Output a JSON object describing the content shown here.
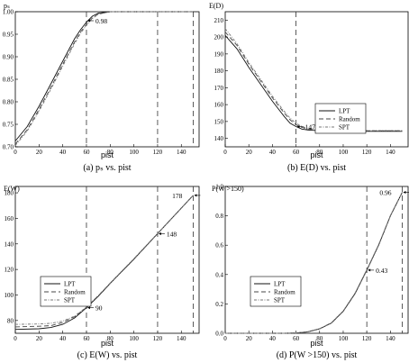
{
  "chart_data": [
    {
      "type": "line",
      "ylabel": "pₛ",
      "xlabel": "pist",
      "caption": "(a) pₛ vs. pist",
      "xlim": [
        0,
        155
      ],
      "ylim": [
        0.7,
        1.0
      ],
      "xticks": [
        "0",
        "20",
        "40",
        "60",
        "80",
        "100",
        "120",
        "140"
      ],
      "yticks": [
        "0.70",
        "0.75",
        "0.80",
        "0.85",
        "0.90",
        "0.95",
        "1.00"
      ],
      "vlines": [
        60,
        120,
        150
      ],
      "annotations": [
        {
          "text": "0.98",
          "x": 60,
          "y": 0.98
        }
      ],
      "legend": null,
      "x": [
        0,
        10,
        20,
        30,
        40,
        50,
        55,
        60,
        65,
        70,
        80,
        100,
        120,
        150
      ],
      "series": [
        {
          "name": "LPT",
          "style": "solid",
          "values": [
            0.713,
            0.745,
            0.79,
            0.84,
            0.89,
            0.94,
            0.96,
            0.977,
            0.99,
            0.997,
            1.0,
            1.0,
            1.0,
            1.0
          ]
        },
        {
          "name": "Random",
          "style": "dashed",
          "values": [
            0.706,
            0.738,
            0.783,
            0.832,
            0.883,
            0.933,
            0.955,
            0.972,
            0.986,
            0.995,
            1.0,
            1.0,
            1.0,
            1.0
          ]
        },
        {
          "name": "SPT",
          "style": "dotdash",
          "values": [
            0.703,
            0.735,
            0.779,
            0.828,
            0.879,
            0.929,
            0.952,
            0.97,
            0.985,
            0.994,
            1.0,
            1.0,
            1.0,
            1.0
          ]
        }
      ]
    },
    {
      "type": "line",
      "ylabel": "E(D)",
      "xlabel": "pist",
      "caption": "(b) E(D) vs. pist",
      "xlim": [
        0,
        155
      ],
      "ylim": [
        135,
        215
      ],
      "xticks": [
        "0",
        "20",
        "40",
        "60",
        "80",
        "100",
        "120",
        "140"
      ],
      "yticks": [
        "140",
        "150",
        "160",
        "170",
        "180",
        "190",
        "200",
        "210"
      ],
      "vlines": [
        60
      ],
      "annotations": [
        {
          "text": "147",
          "x": 60,
          "y": 147
        }
      ],
      "legend": "right",
      "x": [
        0,
        10,
        20,
        30,
        40,
        50,
        55,
        60,
        65,
        70,
        80,
        100,
        120,
        150
      ],
      "series": [
        {
          "name": "LPT",
          "style": "solid",
          "values": [
            201,
            193,
            182,
            172,
            162,
            153,
            149,
            147,
            145.5,
            145,
            144.5,
            144.3,
            144.2,
            144.2
          ]
        },
        {
          "name": "Random",
          "style": "dashed",
          "values": [
            203,
            195,
            184,
            174,
            164,
            155,
            151,
            148,
            146.5,
            145.5,
            145,
            144.6,
            144.5,
            144.5
          ]
        },
        {
          "name": "SPT",
          "style": "dotdash",
          "values": [
            205,
            196,
            185,
            175,
            165,
            156,
            152,
            149,
            147,
            146,
            145.2,
            144.8,
            144.6,
            144.6
          ]
        }
      ]
    },
    {
      "type": "line",
      "ylabel": "E(W)",
      "xlabel": "pist",
      "caption": "(c) E(W) vs. pist",
      "xlim": [
        0,
        155
      ],
      "ylim": [
        70,
        185
      ],
      "xticks": [
        "0",
        "20",
        "40",
        "60",
        "80",
        "100",
        "120",
        "140"
      ],
      "yticks": [
        "80",
        "100",
        "120",
        "140",
        "160",
        "180"
      ],
      "vlines": [
        60,
        120,
        150
      ],
      "annotations": [
        {
          "text": "90",
          "x": 60,
          "y": 90
        },
        {
          "text": "148",
          "x": 120,
          "y": 148
        },
        {
          "text": "178",
          "x": 150,
          "y": 178
        }
      ],
      "legend": "left",
      "x": [
        0,
        20,
        30,
        40,
        50,
        55,
        60,
        70,
        80,
        100,
        120,
        150
      ],
      "series": [
        {
          "name": "LPT",
          "style": "solid",
          "values": [
            73,
            73.5,
            74.5,
            77,
            82,
            86,
            90,
            99,
            109,
            128,
            148,
            178
          ]
        },
        {
          "name": "Random",
          "style": "dashed",
          "values": [
            75,
            75.5,
            76,
            78.5,
            83,
            86.5,
            90.3,
            99.3,
            109.2,
            128.2,
            148.1,
            178
          ]
        },
        {
          "name": "SPT",
          "style": "dotdash",
          "values": [
            77,
            77.3,
            77.8,
            79.5,
            83.5,
            87,
            90.6,
            99.6,
            109.4,
            128.4,
            148.2,
            178
          ]
        }
      ]
    },
    {
      "type": "line",
      "ylabel": "P(W >150)",
      "xlabel": "pist",
      "caption": "(d) P(W >150) vs. pist",
      "xlim": [
        0,
        155
      ],
      "ylim": [
        0,
        1.0
      ],
      "xticks": [
        "0",
        "20",
        "40",
        "60",
        "80",
        "100",
        "120",
        "140"
      ],
      "yticks": [
        "0.0",
        "0.2",
        "0.4",
        "0.6",
        "0.8",
        "1.0"
      ],
      "vlines": [
        120,
        150
      ],
      "annotations": [
        {
          "text": "0.43",
          "x": 120,
          "y": 0.43
        },
        {
          "text": "0.96",
          "x": 150,
          "y": 0.96
        }
      ],
      "legend": "left",
      "x": [
        0,
        50,
        60,
        70,
        80,
        90,
        100,
        110,
        120,
        130,
        140,
        150
      ],
      "series": [
        {
          "name": "LPT",
          "style": "solid",
          "values": [
            0,
            0,
            0.002,
            0.01,
            0.03,
            0.07,
            0.15,
            0.27,
            0.43,
            0.6,
            0.8,
            0.96
          ]
        },
        {
          "name": "Random",
          "style": "dashed",
          "values": [
            0,
            0,
            0.002,
            0.01,
            0.031,
            0.071,
            0.151,
            0.272,
            0.432,
            0.602,
            0.801,
            0.96
          ]
        },
        {
          "name": "SPT",
          "style": "dotdash",
          "values": [
            0,
            0,
            0.002,
            0.011,
            0.032,
            0.072,
            0.153,
            0.274,
            0.434,
            0.604,
            0.802,
            0.96
          ]
        }
      ]
    }
  ]
}
